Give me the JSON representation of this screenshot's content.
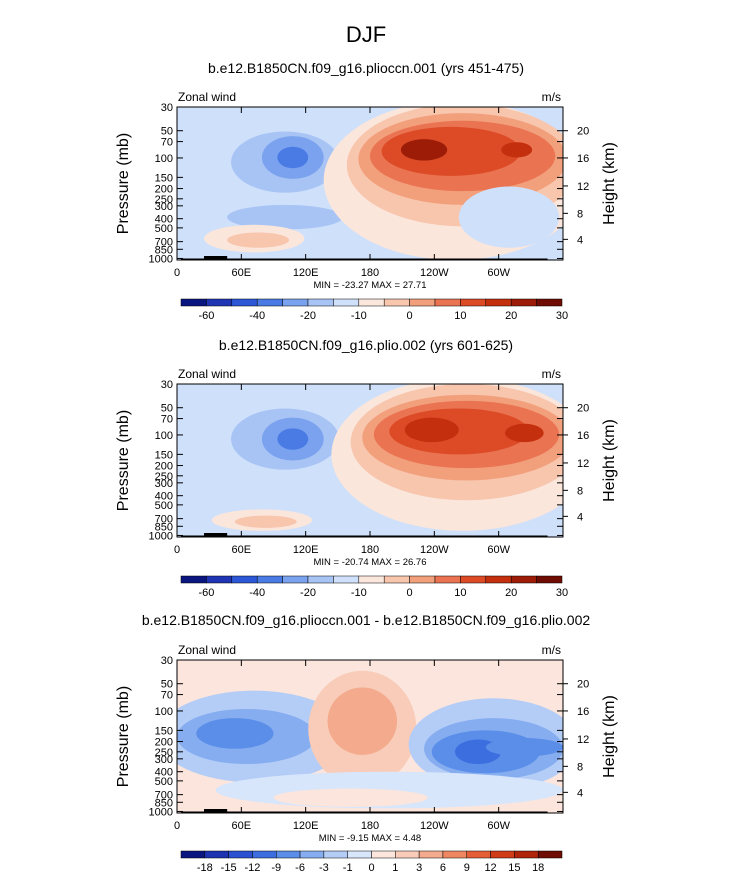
{
  "figure": {
    "main_title": "DJF"
  },
  "chart_data": [
    {
      "type": "heatmap",
      "title": "b.e12.B1850CN.f09_g16.plioccn.001 (yrs 451-475)",
      "left_label": "Zonal wind",
      "right_label": "m/s",
      "ylabel": "Pressure (mb)",
      "ylabel_right": "Height (km)",
      "x_ticks": [
        "0",
        "60E",
        "120E",
        "180",
        "120W",
        "60W"
      ],
      "y_ticks": [
        "30",
        "50",
        "70",
        "100",
        "150",
        "200",
        "250",
        "300",
        "400",
        "500",
        "700",
        "850",
        "1000"
      ],
      "height_ticks": [
        "20",
        "16",
        "12",
        "8",
        "4"
      ],
      "stats": "MIN = -23.27   MAX =  27.71",
      "colorbar_ticks": [
        "-60",
        "-40",
        "-20",
        "-10",
        "0",
        "10",
        "20",
        "30"
      ]
    },
    {
      "type": "heatmap",
      "title": "b.e12.B1850CN.f09_g16.plio.002 (yrs 601-625)",
      "left_label": "Zonal wind",
      "right_label": "m/s",
      "ylabel": "Pressure (mb)",
      "ylabel_right": "Height (km)",
      "x_ticks": [
        "0",
        "60E",
        "120E",
        "180",
        "120W",
        "60W"
      ],
      "y_ticks": [
        "30",
        "50",
        "70",
        "100",
        "150",
        "200",
        "250",
        "300",
        "400",
        "500",
        "700",
        "850",
        "1000"
      ],
      "height_ticks": [
        "20",
        "16",
        "12",
        "8",
        "4"
      ],
      "stats": "MIN = -20.74   MAX =  26.76",
      "colorbar_ticks": [
        "-60",
        "-40",
        "-20",
        "-10",
        "0",
        "10",
        "20",
        "30"
      ]
    },
    {
      "type": "heatmap",
      "title": "b.e12.B1850CN.f09_g16.plioccn.001 - b.e12.B1850CN.f09_g16.plio.002",
      "left_label": "Zonal wind",
      "right_label": "m/s",
      "ylabel": "Pressure (mb)",
      "ylabel_right": "Height (km)",
      "x_ticks": [
        "0",
        "60E",
        "120E",
        "180",
        "120W",
        "60W"
      ],
      "y_ticks": [
        "30",
        "50",
        "70",
        "100",
        "150",
        "200",
        "250",
        "300",
        "400",
        "500",
        "700",
        "850",
        "1000"
      ],
      "height_ticks": [
        "20",
        "16",
        "12",
        "8",
        "4"
      ],
      "stats": "MIN =  -9.15   MAX =   4.48",
      "colorbar_ticks": [
        "-18",
        "-15",
        "-12",
        "-9",
        "-6",
        "-3",
        "-1",
        "0",
        "1",
        "3",
        "6",
        "9",
        "12",
        "15",
        "18"
      ]
    }
  ],
  "colors": {
    "palette_full": [
      "#0a1680",
      "#1f35b4",
      "#2c57d7",
      "#4a7be5",
      "#7aa2ee",
      "#a8c4f5",
      "#cfe0fb",
      "#fbe6dc",
      "#f8c5ad",
      "#f29f7c",
      "#ea7352",
      "#dc4a26",
      "#c4300d",
      "#9c1c07",
      "#6f0d04"
    ],
    "palette_diff": [
      "#0a1680",
      "#1c32b0",
      "#2b50d0",
      "#3d6ee0",
      "#5a8ee8",
      "#86adf0",
      "#b4cdf7",
      "#d8e6fc",
      "#fbe5dc",
      "#f8ccb8",
      "#f4aa8c",
      "#ee8762",
      "#e45e38",
      "#d03b18",
      "#b0240a",
      "#6f0d04"
    ]
  }
}
